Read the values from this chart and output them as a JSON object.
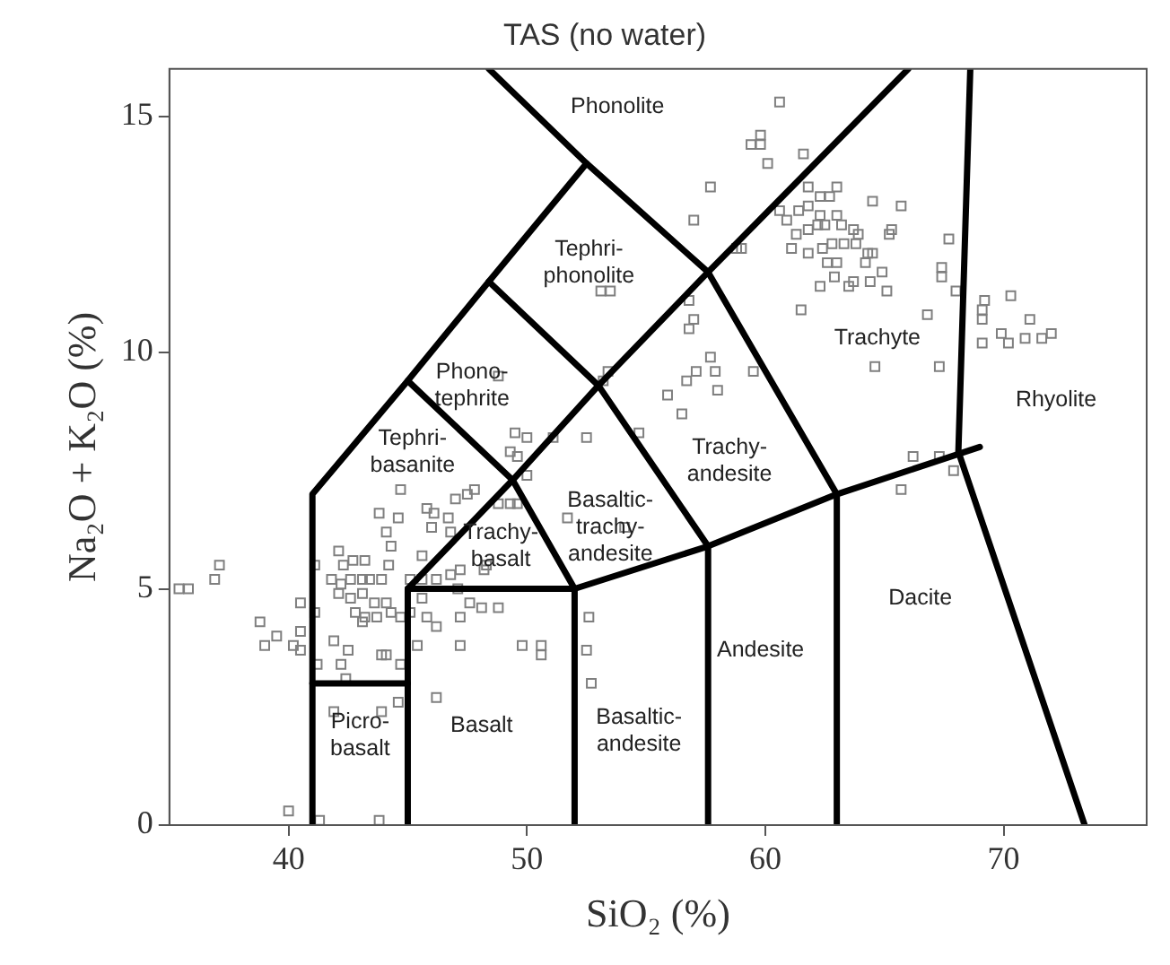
{
  "chart_data": {
    "type": "scatter",
    "title": "TAS (no water)",
    "xlabel": "SiO₂ (%)",
    "ylabel": "Na₂O + K₂O (%)",
    "xlim": [
      35,
      76
    ],
    "ylim": [
      0,
      16
    ],
    "xticks": [
      40,
      50,
      60,
      70
    ],
    "yticks": [
      0,
      5,
      10,
      15
    ],
    "legend": false,
    "series": [
      {
        "color": "#7f7f7f",
        "marker": "square",
        "x": [
          35.4,
          35.8,
          36.9,
          37.1,
          38.8,
          39.0,
          39.5,
          40.2,
          40.5,
          40.5,
          41.1,
          41.1,
          40.5,
          41.2,
          41.9,
          42.5,
          42.2,
          42.4,
          43.9,
          44.1,
          44.7,
          41.9,
          43.9,
          44.6,
          46.2,
          40.0,
          43.8,
          41.3,
          42.1,
          42.3,
          42.7,
          43.2,
          41.8,
          42.2,
          42.6,
          43.1,
          43.4,
          43.9,
          42.1,
          42.6,
          43.1,
          43.6,
          44.1,
          42.8,
          43.2,
          43.7,
          44.3,
          44.7,
          45.1,
          43.1,
          44.2,
          44.3,
          43.8,
          44.1,
          44.6,
          44.7,
          45.8,
          46.1,
          46.7,
          47.0,
          47.5,
          47.8,
          46.0,
          46.8,
          45.6,
          45.1,
          45.6,
          46.2,
          46.8,
          47.1,
          47.6,
          48.1,
          48.8,
          45.6,
          45.8,
          46.2,
          47.2,
          45.4,
          47.2,
          49.8,
          50.6,
          50.6,
          48.2,
          49.6,
          49.3,
          49.6,
          50.0,
          52.5,
          52.6,
          52.7,
          52.5,
          60.6,
          59.4,
          59.8,
          59.8,
          60.1,
          61.6,
          57.7,
          57.0,
          58.8,
          59.0,
          61.8,
          62.3,
          62.7,
          63.0,
          64.5,
          65.7,
          60.6,
          60.9,
          61.4,
          61.8,
          62.3,
          63.0,
          61.3,
          61.8,
          62.2,
          62.5,
          63.2,
          63.7,
          63.9,
          61.1,
          61.8,
          62.4,
          62.8,
          63.3,
          63.8,
          64.3,
          64.5,
          65.2,
          65.3,
          62.6,
          63.0,
          64.2,
          62.3,
          62.9,
          63.5,
          63.7,
          64.4,
          64.9,
          65.1,
          67.7,
          67.4,
          67.4,
          68.0,
          61.5,
          66.8,
          69.1,
          69.2,
          69.1,
          70.3,
          71.1,
          69.9,
          70.2,
          70.9,
          71.6,
          72.0,
          69.1,
          64.6,
          67.3,
          56.8,
          57.0,
          56.8,
          57.7,
          57.1,
          57.9,
          56.7,
          58.0,
          59.5,
          56.5,
          66.2,
          67.3,
          67.9,
          65.7,
          53.1,
          53.5,
          48.8,
          53.4,
          53.2,
          55.9,
          49.5,
          50.0,
          51.1,
          54.7,
          51.7,
          54.1,
          48.8,
          49.3,
          47.2,
          48.3
        ],
        "values": [
          5.0,
          5.0,
          5.2,
          5.5,
          4.3,
          3.8,
          4.0,
          3.8,
          4.1,
          4.7,
          5.5,
          4.5,
          3.7,
          3.4,
          3.9,
          3.7,
          3.4,
          3.1,
          3.6,
          3.6,
          3.4,
          2.4,
          2.4,
          2.6,
          2.7,
          0.3,
          0.1,
          0.1,
          5.8,
          5.5,
          5.6,
          5.6,
          5.2,
          5.1,
          5.2,
          5.2,
          5.2,
          5.2,
          4.9,
          4.8,
          4.9,
          4.7,
          4.7,
          4.5,
          4.4,
          4.4,
          4.5,
          4.4,
          4.5,
          4.3,
          5.5,
          5.9,
          6.6,
          6.2,
          6.5,
          7.1,
          6.7,
          6.6,
          6.5,
          6.9,
          7.0,
          7.1,
          6.3,
          6.2,
          5.7,
          5.2,
          5.2,
          5.2,
          5.3,
          5.0,
          4.7,
          4.6,
          4.6,
          4.8,
          4.4,
          4.2,
          4.4,
          3.8,
          3.8,
          3.8,
          3.6,
          3.8,
          5.4,
          6.8,
          7.9,
          7.8,
          7.4,
          8.2,
          4.4,
          3.0,
          3.7,
          15.3,
          14.4,
          14.6,
          14.4,
          14.0,
          14.2,
          13.5,
          12.8,
          12.2,
          12.2,
          13.5,
          13.3,
          13.3,
          13.5,
          13.2,
          13.1,
          13.0,
          12.8,
          13.0,
          13.1,
          12.9,
          12.9,
          12.5,
          12.6,
          12.7,
          12.7,
          12.7,
          12.6,
          12.5,
          12.2,
          12.1,
          12.2,
          12.3,
          12.3,
          12.3,
          12.1,
          12.1,
          12.5,
          12.6,
          11.9,
          11.9,
          11.9,
          11.4,
          11.6,
          11.4,
          11.5,
          11.5,
          11.7,
          11.3,
          12.4,
          11.8,
          11.6,
          11.3,
          10.9,
          10.8,
          10.9,
          11.1,
          10.7,
          11.2,
          10.7,
          10.4,
          10.2,
          10.3,
          10.3,
          10.4,
          10.2,
          9.7,
          9.7,
          11.1,
          10.7,
          10.5,
          9.9,
          9.6,
          9.6,
          9.4,
          9.2,
          9.6,
          8.7,
          7.8,
          7.8,
          7.5,
          7.1,
          11.3,
          11.3,
          9.5,
          9.6,
          9.4,
          9.1,
          8.3,
          8.2,
          8.2,
          8.3,
          6.5,
          6.3,
          6.8,
          6.8,
          5.4,
          5.5
        ]
      },
      {
        "type": "line",
        "color": "#000000",
        "marker": "none",
        "line_style": "solid",
        "x": [
          41,
          41,
          45,
          48.4,
          52.5,
          48.4
        ],
        "values": [
          0,
          7,
          9.4,
          11.5,
          14,
          16
        ]
      },
      {
        "type": "line",
        "color": "#000000",
        "marker": "none",
        "line_style": "solid",
        "x": [
          45,
          45,
          49.4,
          53,
          57.6,
          66
        ],
        "values": [
          0,
          5,
          7.3,
          9.3,
          11.7,
          16
        ]
      },
      {
        "type": "line",
        "color": "#000000",
        "marker": "none",
        "line_style": "solid",
        "x": [
          41,
          45
        ],
        "values": [
          3,
          3
        ]
      },
      {
        "type": "line",
        "color": "#000000",
        "marker": "none",
        "line_style": "solid",
        "x": [
          45,
          52,
          52
        ],
        "values": [
          5,
          5,
          0
        ]
      },
      {
        "type": "line",
        "color": "#000000",
        "marker": "none",
        "line_style": "solid",
        "x": [
          45,
          49.4,
          52,
          57.6,
          63,
          69
        ],
        "values": [
          9.4,
          7.3,
          5,
          5.9,
          7,
          8
        ]
      },
      {
        "type": "line",
        "color": "#000000",
        "marker": "none",
        "line_style": "solid",
        "x": [
          57.6,
          57.6,
          53,
          48.4
        ],
        "values": [
          0,
          5.9,
          9.3,
          11.5
        ]
      },
      {
        "type": "line",
        "color": "#000000",
        "marker": "none",
        "line_style": "solid",
        "x": [
          52.5,
          57.6,
          63,
          63
        ],
        "values": [
          14,
          11.7,
          7,
          0
        ]
      },
      {
        "type": "line",
        "color": "#000000",
        "marker": "none",
        "line_style": "solid",
        "x": [
          68.6,
          68.1,
          73.4
        ],
        "values": [
          16,
          7.9,
          0
        ]
      }
    ],
    "annotations": [
      "Phonolite",
      "Tephri-\nphonolite",
      "Phono-\ntephrite",
      "Tephri-\nbasanite",
      "Basaltic-\ntrachy-\nandesite",
      "Trachy-\nbasalt",
      "Trachy-\nandesite",
      "Trachyte",
      "Rhyolite",
      "Dacite",
      "Andesite",
      "Basaltic-\nandesite",
      "Basalt",
      "Picro-\nbasalt"
    ]
  }
}
